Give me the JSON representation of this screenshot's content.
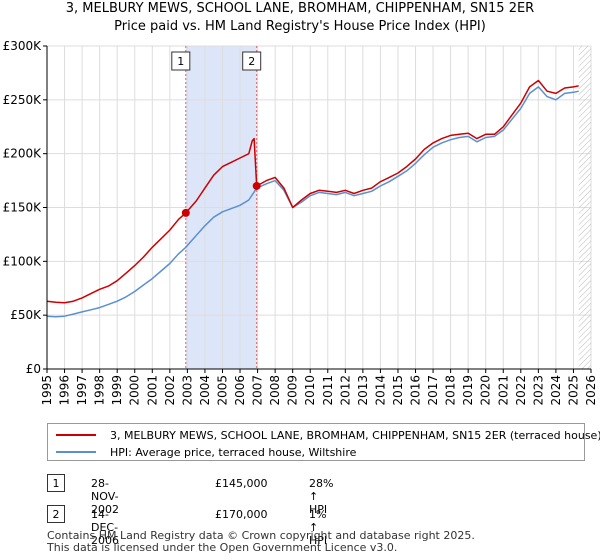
{
  "title_line1": "3, MELBURY MEWS, SCHOOL LANE, BROMHAM, CHIPPENHAM, SN15 2ER",
  "title_line2": "Price paid vs. HM Land Registry's House Price Index (HPI)",
  "colors": {
    "property": "#cc0000",
    "hpi": "#5b8fd0",
    "band": "#dde6f8",
    "grid": "#dddddd",
    "vline": "#e06060"
  },
  "chart_data": {
    "type": "line",
    "title": "Price paid vs. HM Land Registry's House Price Index (HPI)",
    "xlabel": "",
    "ylabel": "",
    "xlim": [
      1995,
      2026
    ],
    "ylim": [
      0,
      300000
    ],
    "y_ticks": [
      0,
      50000,
      100000,
      150000,
      200000,
      250000,
      300000
    ],
    "y_tick_labels": [
      "£0",
      "£50K",
      "£100K",
      "£150K",
      "£200K",
      "£250K",
      "£300K"
    ],
    "x_ticks": [
      1995,
      1996,
      1997,
      1998,
      1999,
      2000,
      2001,
      2002,
      2003,
      2004,
      2005,
      2006,
      2007,
      2008,
      2009,
      2010,
      2011,
      2012,
      2013,
      2014,
      2015,
      2016,
      2017,
      2018,
      2019,
      2020,
      2021,
      2022,
      2023,
      2024,
      2025,
      2026
    ],
    "x_tick_labels": [
      "1995",
      "1996",
      "1997",
      "1998",
      "1999",
      "2000",
      "2001",
      "2002",
      "2003",
      "2004",
      "2005",
      "2006",
      "2007",
      "2008",
      "2009",
      "2010",
      "2011",
      "2012",
      "2013",
      "2014",
      "2015",
      "2016",
      "2017",
      "2018",
      "2019",
      "2020",
      "2021",
      "2022",
      "2023",
      "2024",
      "2025",
      "2026"
    ],
    "series": [
      {
        "name": "3, MELBURY MEWS, SCHOOL LANE, BROMHAM, CHIPPENHAM, SN15 2ER (terraced house)",
        "color": "#cc0000",
        "x": [
          1995.0,
          1995.5,
          1996.0,
          1996.5,
          1997.0,
          1997.5,
          1998.0,
          1998.5,
          1999.0,
          1999.5,
          2000.0,
          2000.5,
          2001.0,
          2001.5,
          2002.0,
          2002.5,
          2002.91,
          2003.5,
          2004.0,
          2004.5,
          2005.0,
          2005.5,
          2006.0,
          2006.5,
          2006.7,
          2006.8,
          2006.95,
          2007.5,
          2008.0,
          2008.5,
          2009.0,
          2009.5,
          2010.0,
          2010.5,
          2011.0,
          2011.5,
          2012.0,
          2012.5,
          2013.0,
          2013.5,
          2014.0,
          2014.5,
          2015.0,
          2015.5,
          2016.0,
          2016.5,
          2017.0,
          2017.5,
          2018.0,
          2018.5,
          2019.0,
          2019.5,
          2020.0,
          2020.5,
          2021.0,
          2021.5,
          2022.0,
          2022.5,
          2023.0,
          2023.5,
          2024.0,
          2024.5,
          2025.0,
          2025.3
        ],
        "y": [
          63000,
          62000,
          61500,
          63000,
          66000,
          70000,
          74000,
          77000,
          82000,
          89000,
          96000,
          104000,
          113000,
          121000,
          129000,
          139000,
          145000,
          156000,
          168000,
          180000,
          188000,
          192000,
          196000,
          200000,
          212000,
          214000,
          170000,
          175000,
          178000,
          168000,
          150000,
          157000,
          163000,
          166000,
          165000,
          164000,
          166000,
          163000,
          166000,
          168000,
          174000,
          178000,
          182000,
          188000,
          195000,
          204000,
          210000,
          214000,
          217000,
          218000,
          219000,
          214000,
          218000,
          218000,
          225000,
          236000,
          247000,
          262000,
          268000,
          258000,
          256000,
          261000,
          262000,
          263000
        ]
      },
      {
        "name": "HPI: Average price, terraced house, Wiltshire",
        "color": "#5b8fd0",
        "x": [
          1995.0,
          1995.5,
          1996.0,
          1996.5,
          1997.0,
          1997.5,
          1998.0,
          1998.5,
          1999.0,
          1999.5,
          2000.0,
          2000.5,
          2001.0,
          2001.5,
          2002.0,
          2002.5,
          2002.91,
          2003.5,
          2004.0,
          2004.5,
          2005.0,
          2005.5,
          2006.0,
          2006.5,
          2006.95,
          2007.5,
          2008.0,
          2008.5,
          2009.0,
          2009.5,
          2010.0,
          2010.5,
          2011.0,
          2011.5,
          2012.0,
          2012.5,
          2013.0,
          2013.5,
          2014.0,
          2014.5,
          2015.0,
          2015.5,
          2016.0,
          2016.5,
          2017.0,
          2017.5,
          2018.0,
          2018.5,
          2019.0,
          2019.5,
          2020.0,
          2020.5,
          2021.0,
          2021.5,
          2022.0,
          2022.5,
          2023.0,
          2023.5,
          2024.0,
          2024.5,
          2025.0,
          2025.3
        ],
        "y": [
          49000,
          48500,
          49000,
          51000,
          53000,
          55000,
          57000,
          60000,
          63000,
          67000,
          72000,
          78000,
          84000,
          91000,
          98000,
          107000,
          113000,
          124000,
          133000,
          141000,
          146000,
          149000,
          152000,
          157000,
          168000,
          172000,
          175000,
          166000,
          150000,
          155000,
          161000,
          164000,
          163000,
          162000,
          164000,
          161000,
          163000,
          165000,
          170000,
          174000,
          179000,
          184000,
          191000,
          199000,
          206000,
          210000,
          213000,
          215000,
          216000,
          211000,
          215000,
          216000,
          222000,
          232000,
          242000,
          256000,
          262000,
          253000,
          250000,
          256000,
          257000,
          258000
        ]
      }
    ],
    "shaded_range": [
      2002.91,
      2006.95
    ],
    "markers": [
      {
        "label": "1",
        "x": 2002.91,
        "y": 145000
      },
      {
        "label": "2",
        "x": 2006.95,
        "y": 170000
      }
    ],
    "hatched_from": 2025.3,
    "legend_position": "bottom"
  },
  "legend": {
    "property_label": "3, MELBURY MEWS, SCHOOL LANE, BROMHAM, CHIPPENHAM, SN15 2ER (terraced house)",
    "hpi_label": "HPI: Average price, terraced house, Wiltshire"
  },
  "transactions": [
    {
      "num": "1",
      "date": "28-NOV-2002",
      "price": "£145,000",
      "hpi": "28% ↑ HPI"
    },
    {
      "num": "2",
      "date": "14-DEC-2006",
      "price": "£170,000",
      "hpi": "1% ↑ HPI"
    }
  ],
  "footer": {
    "line1": "Contains HM Land Registry data © Crown copyright and database right 2025.",
    "line2": "This data is licensed under the Open Government Licence v3.0."
  }
}
